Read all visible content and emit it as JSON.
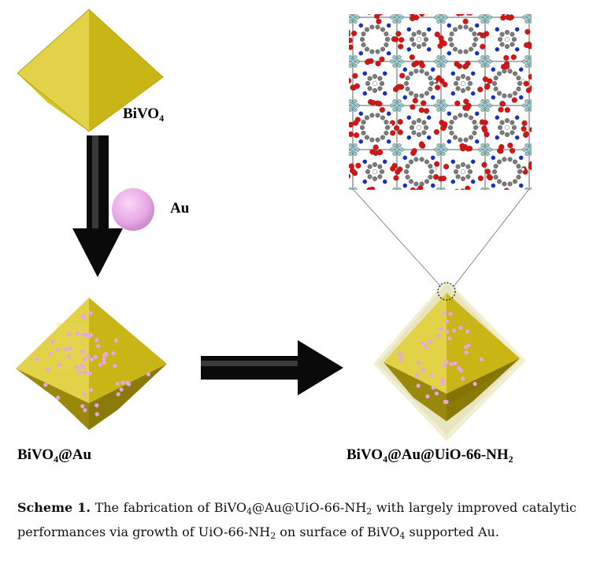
{
  "labels": {
    "bivo4": {
      "base": "BiVO",
      "sub": "4"
    },
    "au": "Au",
    "bivo4_au": {
      "base": "BiVO",
      "sub": "4",
      "rest": "@Au"
    },
    "final": {
      "base": "BiVO",
      "sub": "4",
      "mid": "@Au@UiO-66-NH",
      "sub2": "2"
    }
  },
  "caption": {
    "scheme_label": "Scheme 1.",
    "t1": "The fabrication of BiVO",
    "s1": "4",
    "t2": "@Au@UiO-66-NH",
    "s2": "2",
    "t3": " with largely improved catalytic performances via growth of UiO-66-NH",
    "s3": "2",
    "t4": " on surface of BiVO",
    "s4": "4",
    "t5": " supported Au."
  },
  "colors": {
    "crystal_light": "#e4d44a",
    "crystal_mid": "#d2be1c",
    "crystal_dark": "#a08d08",
    "au_particle": "#e8a6e6",
    "mof_shell": "#ece8c2",
    "arrow": "#0a0a0a",
    "oxygen": "#e01010",
    "nitrogen": "#1030d0",
    "carbon": "#7a7a7a",
    "zr": "#8cc8cc",
    "hydrogen": "#ffffff"
  },
  "icons": [
    "octahedron-icon",
    "au-sphere-icon",
    "down-arrow-icon",
    "right-arrow-icon",
    "mof-lattice-icon",
    "zoom-circle-icon"
  ]
}
